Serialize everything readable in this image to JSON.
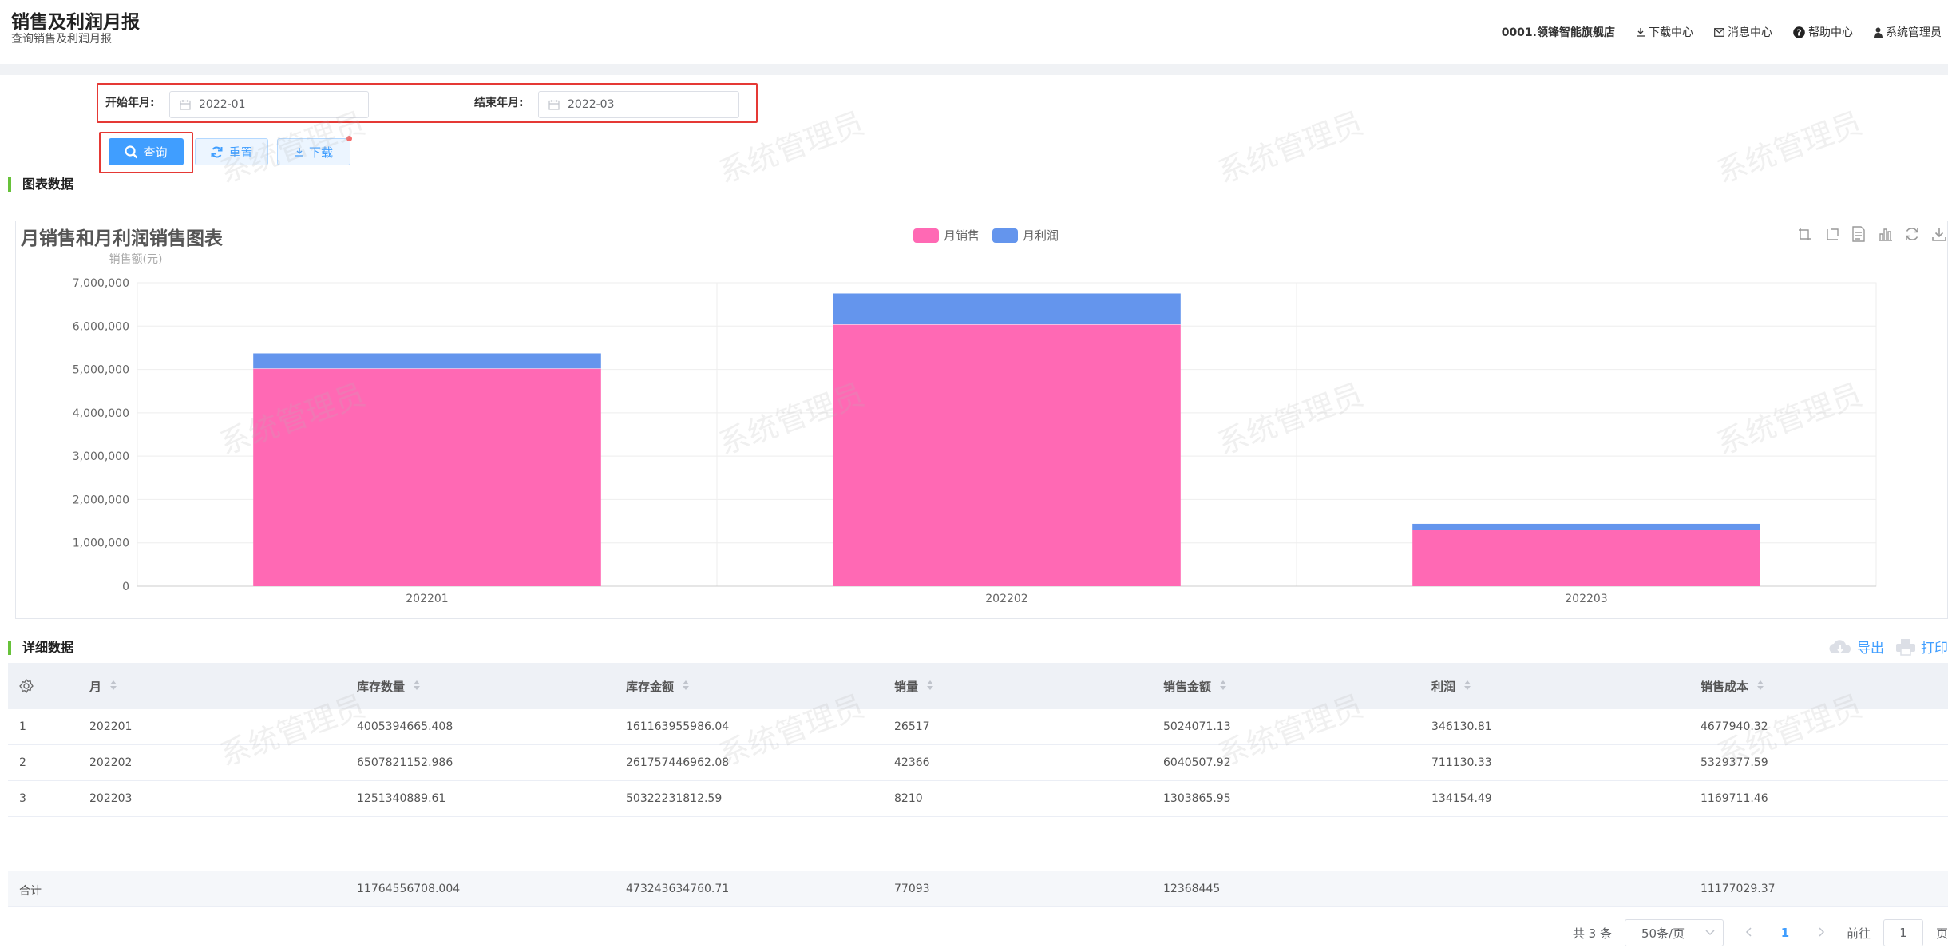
{
  "header": {
    "title": "销售及利润月报",
    "subtitle": "查询销售及利润月报",
    "store": "0001.领锋智能旗舰店",
    "download_center": "下载中心",
    "message_center": "消息中心",
    "help_center": "帮助中心",
    "user": "系统管理员"
  },
  "watermark": "系统管理员",
  "filter": {
    "start_label": "开始年月:",
    "start_value": "2022-01",
    "end_label": "结束年月:",
    "end_value": "2022-03",
    "query_label": "查询",
    "reset_label": "重置",
    "download_label": "下载"
  },
  "chart_section_title": "图表数据",
  "detail_section_title": "详细数据",
  "chart_data": {
    "type": "bar",
    "stacked": true,
    "title": "月销售和月利润销售图表",
    "ylabel": "销售额(元)",
    "xlabel": "",
    "categories": [
      "202201",
      "202202",
      "202203"
    ],
    "ylim": [
      0,
      7000000
    ],
    "yticks": [
      0,
      1000000,
      2000000,
      3000000,
      4000000,
      5000000,
      6000000,
      7000000
    ],
    "ytick_labels": [
      "0",
      "1,000,000",
      "2,000,000",
      "3,000,000",
      "4,000,000",
      "5,000,000",
      "6,000,000",
      "7,000,000"
    ],
    "grid": true,
    "legend_position": "top-center",
    "series": [
      {
        "name": "月销售",
        "color": "#ff69b4",
        "values": [
          5024071.13,
          6040507.92,
          1303865.95
        ]
      },
      {
        "name": "月利润",
        "color": "#6495ed",
        "values": [
          346130.81,
          711130.33,
          134154.49
        ]
      }
    ]
  },
  "table": {
    "columns": [
      "月",
      "库存数量",
      "库存金额",
      "销量",
      "销售金额",
      "利润",
      "销售成本"
    ],
    "rows": [
      {
        "index": "1",
        "cells": [
          "202201",
          "4005394665.408",
          "161163955986.04",
          "26517",
          "5024071.13",
          "346130.81",
          "4677940.32"
        ]
      },
      {
        "index": "2",
        "cells": [
          "202202",
          "6507821152.986",
          "261757446962.08",
          "42366",
          "6040507.92",
          "711130.33",
          "5329377.59"
        ]
      },
      {
        "index": "3",
        "cells": [
          "202203",
          "1251340889.61",
          "50322231812.59",
          "8210",
          "1303865.95",
          "134154.49",
          "1169711.46"
        ]
      }
    ],
    "summary": {
      "label": "合计",
      "cells": [
        "",
        "11764556708.004",
        "473243634760.71",
        "77093",
        "12368445",
        "",
        "11177029.37"
      ]
    },
    "export_label": "导出",
    "print_label": "打印"
  },
  "pager": {
    "total": "共 3 条",
    "page_size": "50条/页",
    "current": "1",
    "goto_prefix": "前往",
    "goto_value": "1",
    "goto_suffix": "页"
  },
  "colors": {
    "accent": "#409eff",
    "section_bar": "#67c23a",
    "highlight": "#e53935"
  }
}
